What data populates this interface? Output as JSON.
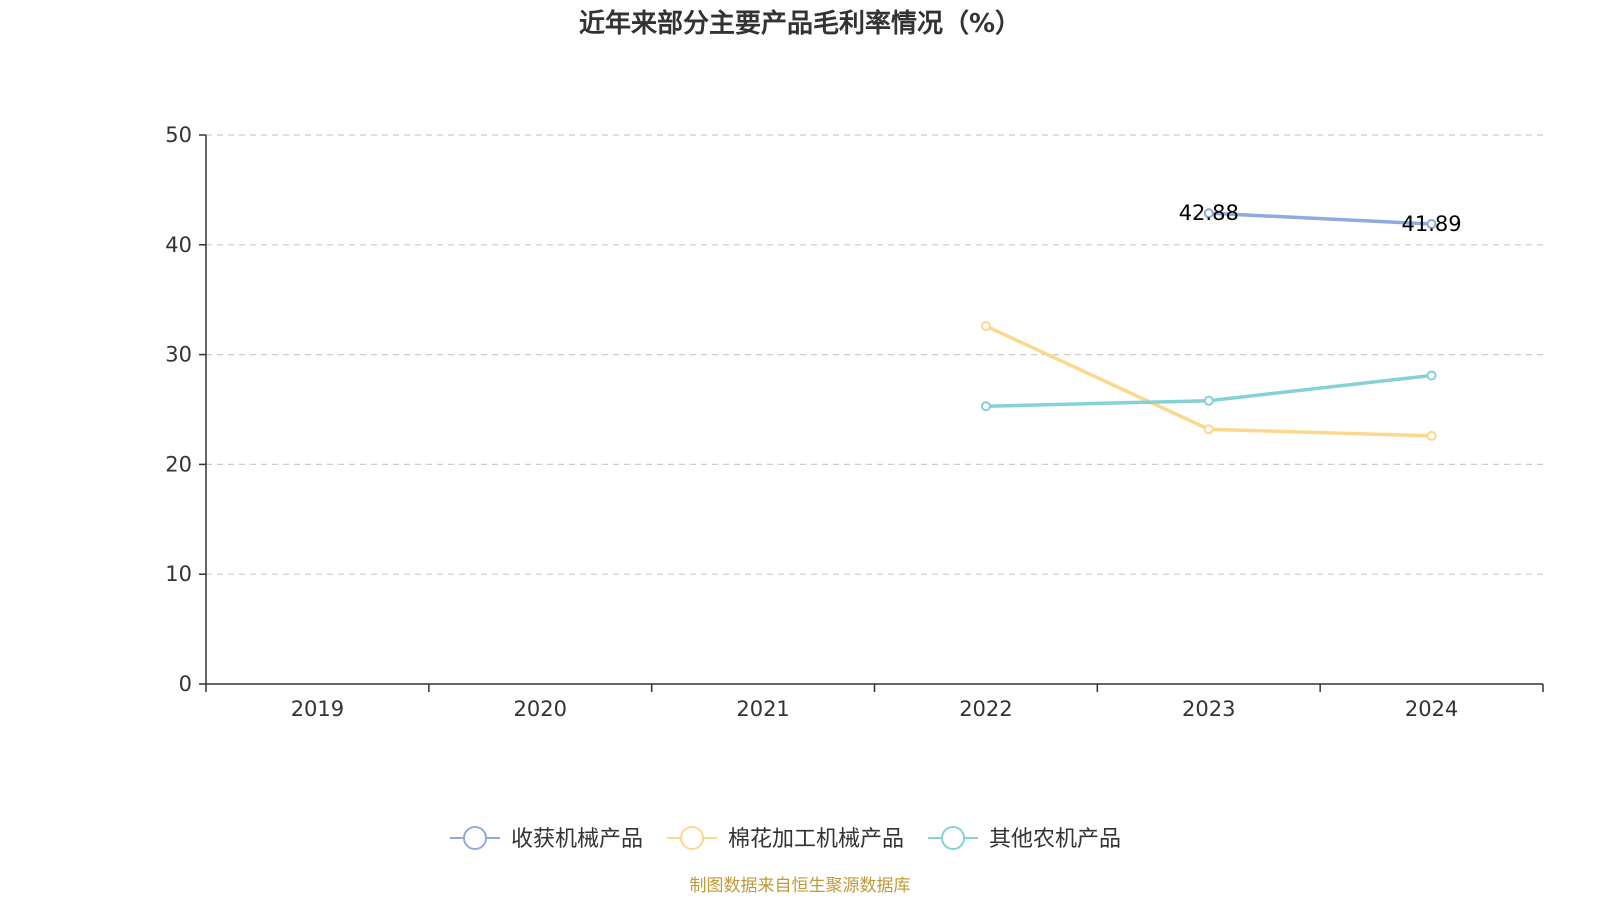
{
  "chart_data": {
    "type": "line",
    "title": "近年来部分主要产品毛利率情况（%）",
    "categories": [
      "2019",
      "2020",
      "2021",
      "2022",
      "2023",
      "2024"
    ],
    "ylim": [
      0,
      50
    ],
    "yticks": [
      0,
      10,
      20,
      30,
      40,
      50
    ],
    "grid": true,
    "legend_position": "bottom",
    "series": [
      {
        "name": "收获机械产品",
        "color": "#8faadc",
        "values": [
          null,
          null,
          null,
          null,
          42.88,
          41.89
        ],
        "labels": [
          null,
          null,
          null,
          null,
          "42.88",
          "41.89"
        ]
      },
      {
        "name": "棉花加工机械产品",
        "color": "#fcd88f",
        "values": [
          null,
          null,
          null,
          32.6,
          23.2,
          22.6
        ],
        "labels": [
          null,
          null,
          null,
          null,
          null,
          null
        ]
      },
      {
        "name": "其他农机产品",
        "color": "#86d1d3",
        "values": [
          null,
          null,
          null,
          25.3,
          25.8,
          28.1
        ],
        "labels": [
          null,
          null,
          null,
          null,
          null,
          null
        ]
      }
    ],
    "source": "制图数据来自恒生聚源数据库",
    "source_color": "#c09a3a"
  }
}
